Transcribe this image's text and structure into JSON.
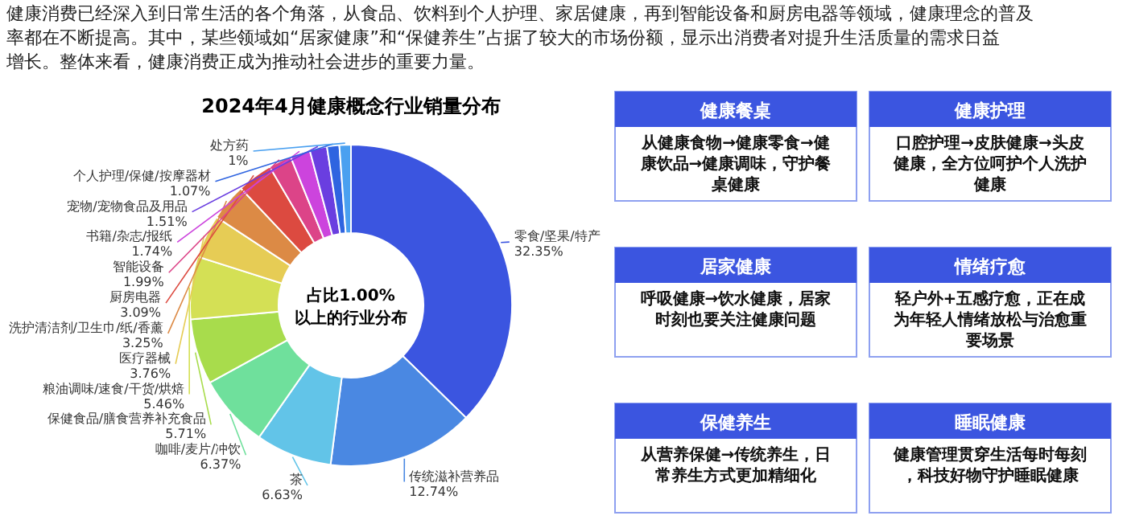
{
  "chart_data": [
    {
      "type": "donut",
      "title": "2024年4月健康概念行业销量分布",
      "subtitle": "健康消费已经深入到日常生活的各个角落，从食品、饮料到个人护理、家居健康，再到智能设备和厨房电器等领域，健康理念的普及率都在不断提高。其中，某些领域如“居家健康”和“保健养生”占据了较大的市场份额，显示出消费者对提升生活质量的需求日益增长。整体来看，健康消费正成为推动社会进步的重要力量。",
      "categories": [
        "零食/坚果/特产",
        "传统滋补营养品",
        "茶",
        "咖啡/麦片/冲饮",
        "保健食品/膳食营养补充食品",
        "粮油调味/速食/干货/烘焙",
        "医疗器械",
        "洗护清洁剂/卫生巾/纸/香薰",
        "厨房电器",
        "智能设备",
        "书籍/杂志/报纸",
        "宠物/宠物食品及用品",
        "个人护理/保健/按摩器材",
        "处方药"
      ],
      "values": [
        32.35,
        12.74,
        6.63,
        6.37,
        5.71,
        5.46,
        3.76,
        3.25,
        3.09,
        1.99,
        1.74,
        1.51,
        1.07,
        1
      ],
      "value_labels": [
        "32.35%",
        "12.74%",
        "6.63%",
        "6.37%",
        "5.71%",
        "5.46%",
        "3.76%",
        "3.25%",
        "3.09%",
        "1.99%",
        "1.74%",
        "1.51%",
        "1.07%",
        "1%"
      ],
      "colors": [
        "#3b55e0",
        "#4a88e2",
        "#62c4e8",
        "#6fe09c",
        "#a8dc4c",
        "#d4e055",
        "#e6cc55",
        "#dc8a45",
        "#dc4a40",
        "#dc4488",
        "#cc44dd",
        "#6a3ee0",
        "#2f64e0",
        "#4aa0f0"
      ],
      "annotations": [
        "占比1.00%以上的行业分布"
      ]
    },
    {
      "type": "other",
      "annotations": [
        "健康餐桌",
        "从健康食物→健康零食→健康饮品→健康调味，守护餐桌健康",
        "健康护理",
        "口腔护理→皮肤健康→头皮健康，全方位呵护个人洗护健康",
        "居家健康",
        "呼吸健康→饮水健康，居家时刻也要关注健康问题",
        "情绪疗愈",
        "轻户外+五感疗愈，正在成为年轻人情绪放松与治愈重要场景",
        "保健养生",
        "从营养保健→传统养生，日常养生方式更加精细化",
        "睡眠健康",
        "健康管理贯穿生活每时每刻，科技好物守护睡眠健康"
      ]
    }
  ]
}
